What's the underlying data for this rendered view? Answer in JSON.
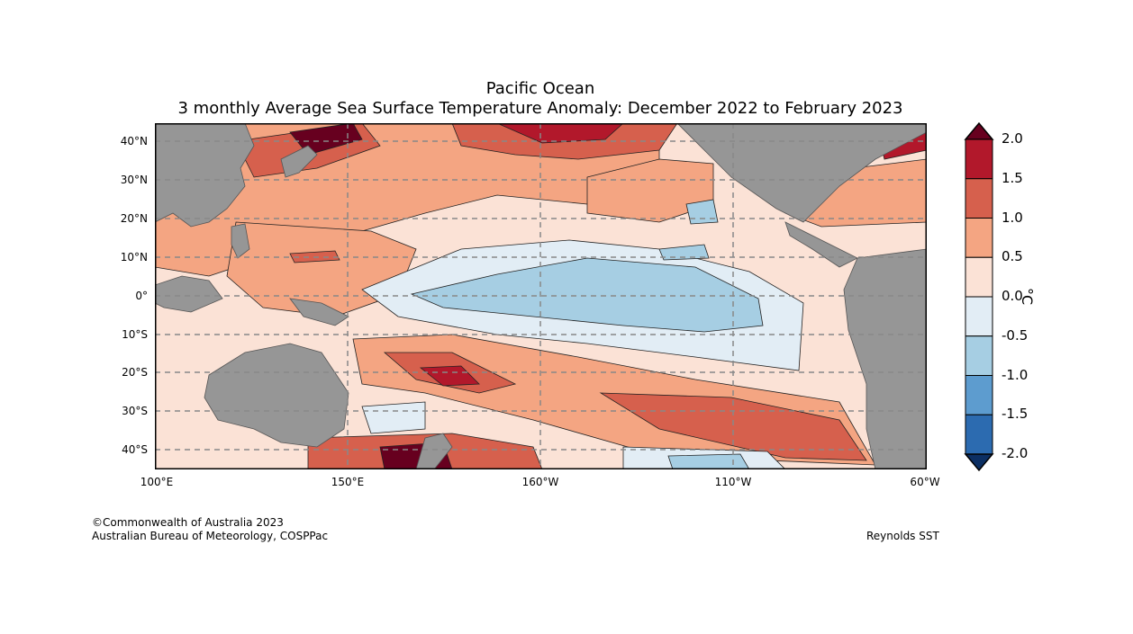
{
  "title": "Pacific Ocean",
  "subtitle": "3 monthly Average Sea Surface Temperature Anomaly: December 2022 to February 2023",
  "lat_labels": [
    "40°N",
    "30°N",
    "20°N",
    "10°N",
    "0°",
    "10°S",
    "20°S",
    "30°S",
    "40°S"
  ],
  "lon_labels": [
    "100°E",
    "150°E",
    "160°W",
    "110°W",
    "60°W"
  ],
  "colorbar": {
    "unit": "°C",
    "tick_labels": [
      "2.0",
      "1.5",
      "1.0",
      "0.5",
      "0.0",
      "-0.5",
      "-1.0",
      "-1.5",
      "-2.0"
    ],
    "colors": [
      "#67001f",
      "#b2182b",
      "#d6604d",
      "#f4a582",
      "#fbe2d6",
      "#e2edf5",
      "#a6cee3",
      "#5d9ccf",
      "#2c6bb0",
      "#0c2f63"
    ]
  },
  "credits": {
    "line1": "©Commonwealth of Australia 2023",
    "line2": "Australian Bureau of Meteorology, COSPPac",
    "source": "Reynolds SST"
  }
}
